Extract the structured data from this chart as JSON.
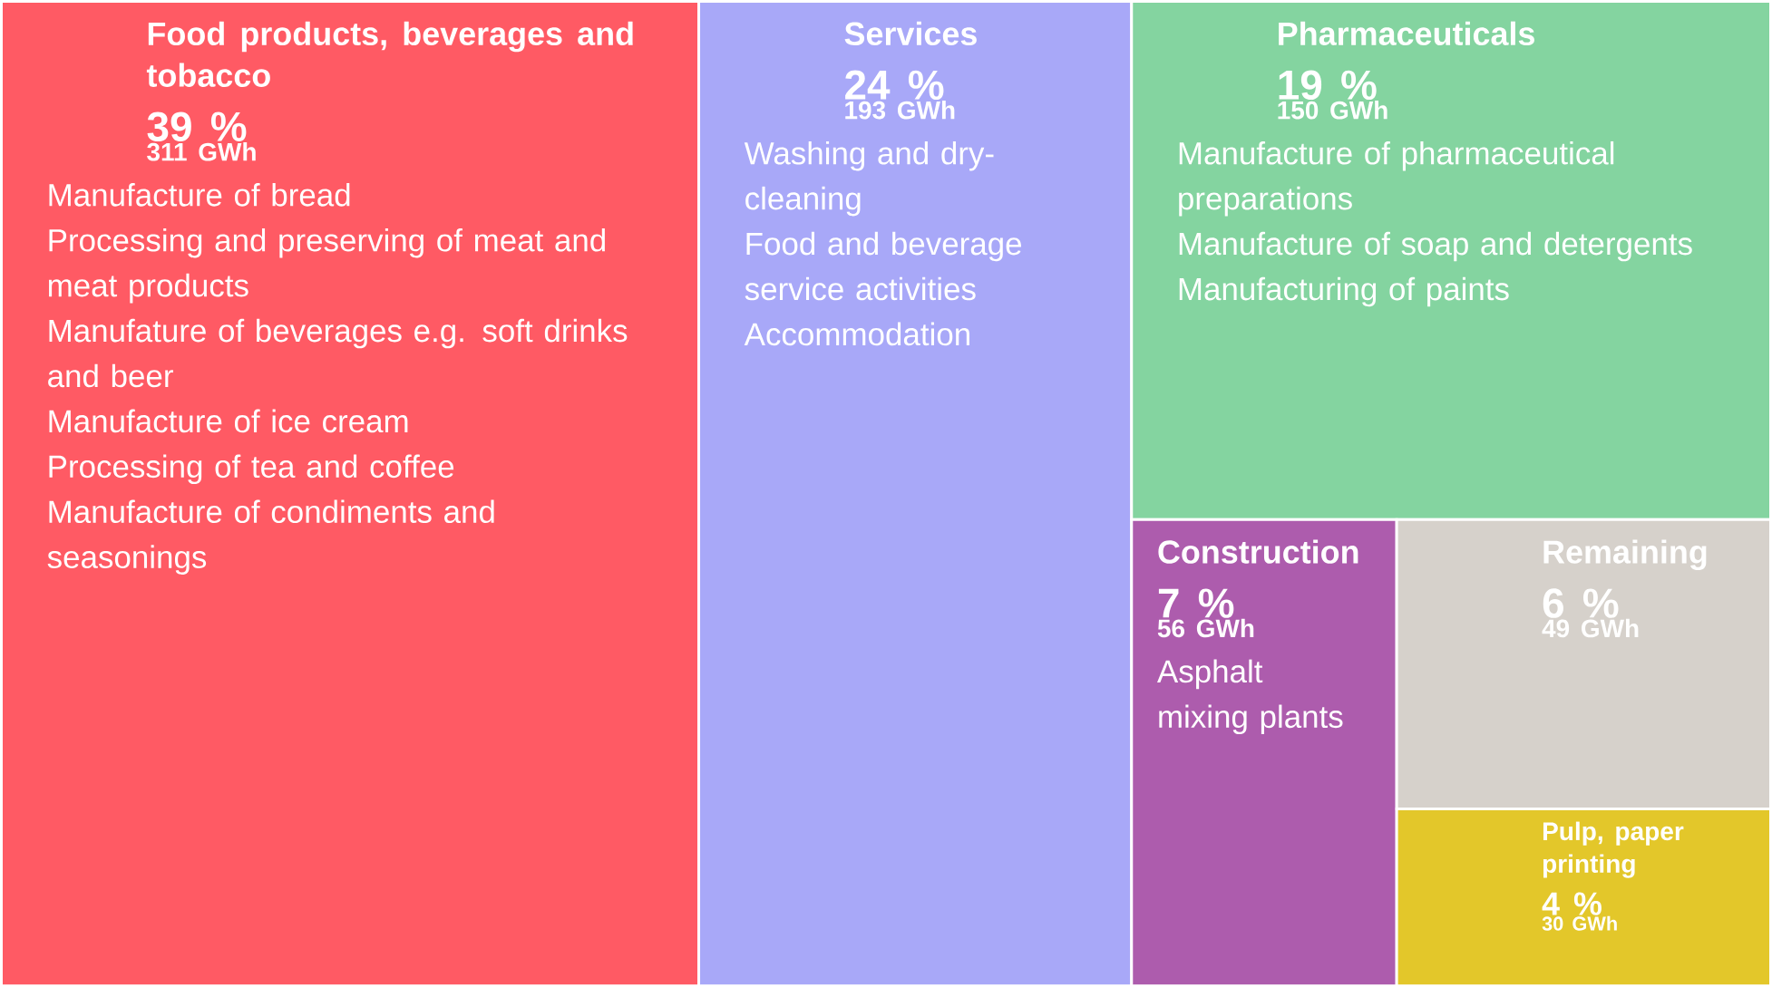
{
  "chart_data": {
    "type": "other",
    "categories": [
      "Food products, beverages and tobacco",
      "Services",
      "Pharmaceuticals",
      "Construction",
      "Remaining",
      "Pulp, paper printing"
    ],
    "series": [
      {
        "colors": [
          "#ff5a64",
          "#a8a8f8",
          "#84d4a0",
          "#ad5cad",
          "#d6d1cb",
          "#e3c72a"
        ],
        "values": [
          39,
          24,
          19,
          7,
          6,
          4
        ],
        "value_labels": [
          "39 %",
          "24 %",
          "19 %",
          "7 %",
          "6 %",
          "4 %"
        ]
      },
      {
        "values": [
          311,
          193,
          150,
          56,
          49,
          30
        ],
        "value_labels": [
          "311 GWh",
          "193 GWh",
          "150 GWh",
          "56 GWh",
          "49 GWh",
          "30 GWh"
        ]
      }
    ],
    "annotations": [
      {
        "text": "Manufacture of bread",
        "x": "Food products, beverages and tobacco"
      },
      {
        "text": "Processing and preserving of meat and meat products",
        "x": "Food products, beverages and tobacco"
      },
      {
        "text": "Manufature of beverages e.g. soft drinks and beer",
        "x": "Food products, beverages and tobacco"
      },
      {
        "text": "Manufacture of ice cream",
        "x": "Food products, beverages and tobacco"
      },
      {
        "text": "Processing of tea and coffee",
        "x": "Food products, beverages and tobacco"
      },
      {
        "text": "Manufacture of condiments and seasonings",
        "x": "Food products, beverages and tobacco"
      },
      {
        "text": "Washing and dry-cleaning",
        "x": "Services"
      },
      {
        "text": "Food and beverage service activities",
        "x": "Services"
      },
      {
        "text": "Accommodation",
        "x": "Services"
      },
      {
        "text": "Manufacture of pharmaceutical preparations",
        "x": "Pharmaceuticals"
      },
      {
        "text": "Manufacture of soap and detergents",
        "x": "Pharmaceuticals"
      },
      {
        "text": "Manufacturing of paints",
        "x": "Pharmaceuticals"
      },
      {
        "text": "Asphalt mixing plants",
        "x": "Construction"
      }
    ]
  }
}
